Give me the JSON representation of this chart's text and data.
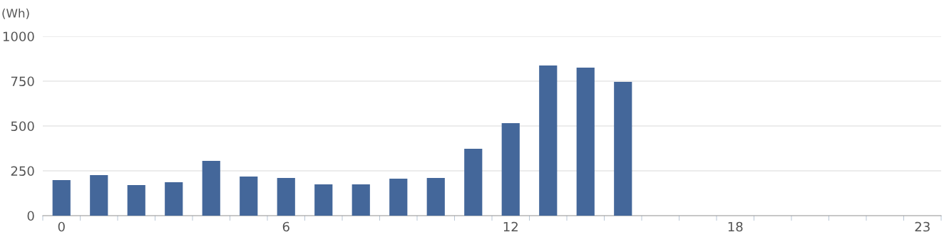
{
  "chart_data": {
    "type": "bar",
    "ylabel": "(Wh)",
    "categories": [
      "0",
      null,
      null,
      null,
      null,
      null,
      "6",
      null,
      null,
      null,
      null,
      null,
      "12",
      null,
      null,
      null,
      null,
      null,
      "18",
      null,
      null,
      null,
      null,
      "23"
    ],
    "series": [
      {
        "color": "#44679a",
        "values": [
          198,
          226,
          171,
          187,
          306,
          218,
          210,
          175,
          175,
          206,
          210,
          373,
          516,
          837,
          825,
          746,
          null,
          null,
          null,
          null,
          null,
          null,
          null,
          null
        ]
      }
    ],
    "ylim": [
      0,
      1000
    ],
    "yticks": [
      0,
      250,
      500,
      750,
      1000
    ],
    "grid": "y"
  }
}
